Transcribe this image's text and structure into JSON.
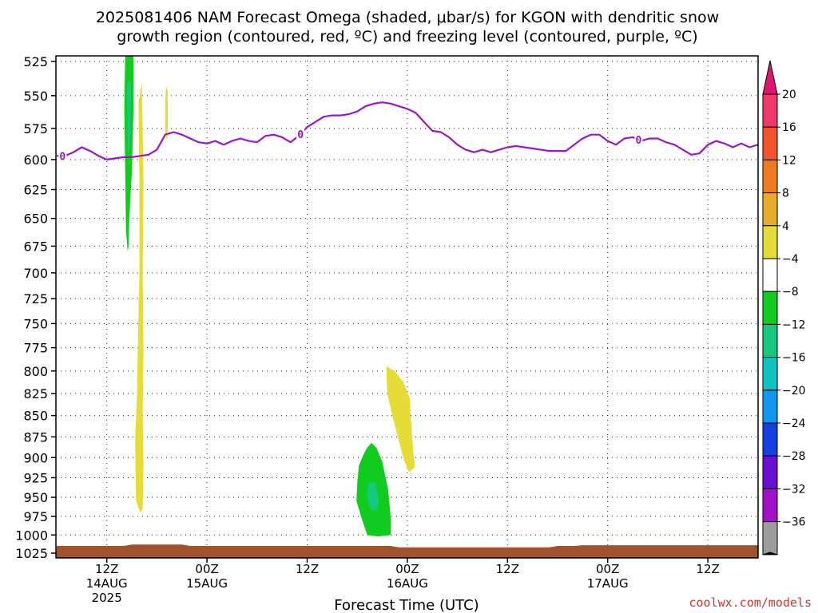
{
  "title": {
    "line1": "2025081406 NAM Forecast Omega (shaded, μbar/s) for KGON with dendritic snow",
    "line2": "growth region (contoured, red, ºC) and freezing level (contoured, purple, ºC)"
  },
  "credit": "coolwx.com/models",
  "chart_data": {
    "type": "contour",
    "title": "2025081406 NAM Forecast Omega (shaded, μbar/s) for KGON with dendritic snow growth region (contoured, red, ºC) and freezing level (contoured, purple, ºC)",
    "xlabel": "Forecast Time (UTC)",
    "ylabel": "",
    "x_range_hours": [
      0,
      84
    ],
    "y_scale": "pressure (hPa), increasing downward",
    "ylim": [
      520,
      1030
    ],
    "y_ticks": [
      525,
      550,
      575,
      600,
      625,
      650,
      675,
      700,
      725,
      750,
      775,
      800,
      825,
      850,
      875,
      900,
      925,
      950,
      975,
      1000,
      1025
    ],
    "x_ticks": [
      {
        "hour": 6,
        "line1": "12Z",
        "line2": "14AUG",
        "line3": "2025"
      },
      {
        "hour": 18,
        "line1": "00Z",
        "line2": "15AUG",
        "line3": ""
      },
      {
        "hour": 30,
        "line1": "12Z",
        "line2": "",
        "line3": ""
      },
      {
        "hour": 42,
        "line1": "00Z",
        "line2": "16AUG",
        "line3": ""
      },
      {
        "hour": 54,
        "line1": "12Z",
        "line2": "",
        "line3": ""
      },
      {
        "hour": 66,
        "line1": "00Z",
        "line2": "17AUG",
        "line3": ""
      },
      {
        "hour": 78,
        "line1": "12Z",
        "line2": "",
        "line3": ""
      }
    ],
    "grid": true,
    "legend": "colorbar-right",
    "colorbar": {
      "labels": [
        "20",
        "16",
        "12",
        "8",
        "4",
        "−4",
        "−8",
        "−12",
        "−16",
        "−20",
        "−24",
        "−28",
        "−32",
        "−36"
      ],
      "colors": [
        "#f0386a",
        "#f2542e",
        "#ee7a21",
        "#e8ac2a",
        "#e6dc37",
        "#ffffff",
        "#11cc1e",
        "#15c880",
        "#12c2c2",
        "#1296f0",
        "#1640e0",
        "#6a10d4",
        "#a010c8",
        "#9c9c9c"
      ],
      "top_arrow_color": "#e0146e",
      "bottom_arrow_color": "#000000"
    },
    "freezing_level": {
      "label": "0",
      "color": "#9a16c8",
      "points": [
        [
          0,
          597
        ],
        [
          1,
          597
        ],
        [
          2,
          594
        ],
        [
          3,
          590
        ],
        [
          4,
          593
        ],
        [
          5,
          597
        ],
        [
          6,
          600
        ],
        [
          7,
          599
        ],
        [
          8,
          598
        ],
        [
          9,
          598
        ],
        [
          10,
          597
        ],
        [
          11,
          596
        ],
        [
          12,
          592
        ],
        [
          13,
          580
        ],
        [
          14,
          578
        ],
        [
          15,
          580
        ],
        [
          16,
          583
        ],
        [
          17,
          586
        ],
        [
          18,
          587
        ],
        [
          19,
          585
        ],
        [
          20,
          588
        ],
        [
          21,
          585
        ],
        [
          22,
          583
        ],
        [
          23,
          585
        ],
        [
          24,
          586
        ],
        [
          25,
          581
        ],
        [
          26,
          580
        ],
        [
          27,
          582
        ],
        [
          28,
          586
        ],
        [
          29,
          581
        ],
        [
          30,
          574
        ],
        [
          31,
          570
        ],
        [
          32,
          566
        ],
        [
          33,
          565
        ],
        [
          34,
          565
        ],
        [
          35,
          564
        ],
        [
          36,
          562
        ],
        [
          37,
          558
        ],
        [
          38,
          556
        ],
        [
          39,
          555
        ],
        [
          40,
          556
        ],
        [
          41,
          558
        ],
        [
          42,
          560
        ],
        [
          43,
          563
        ],
        [
          44,
          570
        ],
        [
          45,
          577
        ],
        [
          46,
          578
        ],
        [
          47,
          582
        ],
        [
          48,
          588
        ],
        [
          49,
          592
        ],
        [
          50,
          594
        ],
        [
          51,
          592
        ],
        [
          52,
          594
        ],
        [
          53,
          592
        ],
        [
          54,
          590
        ],
        [
          55,
          589
        ],
        [
          56,
          590
        ],
        [
          57,
          591
        ],
        [
          58,
          592
        ],
        [
          59,
          593
        ],
        [
          60,
          593
        ],
        [
          61,
          593
        ],
        [
          62,
          588
        ],
        [
          63,
          583
        ],
        [
          64,
          580
        ],
        [
          65,
          580
        ],
        [
          66,
          585
        ],
        [
          67,
          588
        ],
        [
          68,
          583
        ],
        [
          69,
          582
        ],
        [
          70,
          585
        ],
        [
          71,
          583
        ],
        [
          72,
          583
        ],
        [
          73,
          586
        ],
        [
          74,
          588
        ],
        [
          75,
          592
        ],
        [
          76,
          596
        ],
        [
          77,
          595
        ],
        [
          78,
          588
        ],
        [
          79,
          585
        ],
        [
          80,
          587
        ],
        [
          81,
          590
        ],
        [
          82,
          587
        ],
        [
          83,
          590
        ],
        [
          84,
          588
        ]
      ],
      "label_hours": [
        0.7,
        29.2,
        69.7
      ]
    },
    "omega_regions": [
      {
        "value_range": [
          -8,
          -4
        ],
        "color": "#11cc1e",
        "points": [
          [
            8.2,
            520
          ],
          [
            9.2,
            520
          ],
          [
            9.2,
            560
          ],
          [
            9.0,
            610
          ],
          [
            8.7,
            650
          ],
          [
            8.6,
            675
          ],
          [
            8.5,
            680
          ],
          [
            8.3,
            660
          ],
          [
            8.2,
            610
          ],
          [
            8.1,
            560
          ]
        ]
      },
      {
        "value_range": [
          -12,
          -8
        ],
        "color": "#15c880",
        "points": [
          [
            8.4,
            540
          ],
          [
            8.9,
            540
          ],
          [
            8.8,
            580
          ],
          [
            8.6,
            600
          ],
          [
            8.5,
            580
          ]
        ]
      },
      {
        "value_range": [
          4,
          8
        ],
        "color": "#e6dc37",
        "points": [
          [
            9.8,
            555
          ],
          [
            10.2,
            540
          ],
          [
            10.4,
            620
          ],
          [
            10.3,
            700
          ],
          [
            10.4,
            780
          ],
          [
            10.3,
            850
          ],
          [
            10.4,
            910
          ],
          [
            10.3,
            965
          ],
          [
            10.0,
            970
          ],
          [
            9.5,
            955
          ],
          [
            9.4,
            880
          ],
          [
            9.6,
            830
          ],
          [
            9.7,
            780
          ],
          [
            9.9,
            700
          ],
          [
            9.9,
            620
          ]
        ]
      },
      {
        "value_range": [
          4,
          8
        ],
        "color": "#e6dc37",
        "points": [
          [
            13.1,
            543
          ],
          [
            13.3,
            547
          ],
          [
            13.3,
            575
          ],
          [
            13.2,
            585
          ],
          [
            13.0,
            578
          ],
          [
            13.0,
            555
          ]
        ]
      },
      {
        "value_range": [
          4,
          8
        ],
        "color": "#e6dc37",
        "points": [
          [
            39.5,
            795
          ],
          [
            40.5,
            800
          ],
          [
            41.5,
            812
          ],
          [
            42.3,
            830
          ],
          [
            42.4,
            850
          ],
          [
            42.7,
            890
          ],
          [
            42.9,
            912
          ],
          [
            42.2,
            918
          ],
          [
            41.6,
            903
          ],
          [
            41.0,
            880
          ],
          [
            40.2,
            850
          ],
          [
            39.6,
            825
          ],
          [
            39.5,
            805
          ]
        ]
      },
      {
        "value_range": [
          -8,
          -4
        ],
        "color": "#11cc1e",
        "points": [
          [
            37.7,
            882
          ],
          [
            38.3,
            888
          ],
          [
            39.0,
            905
          ],
          [
            39.7,
            940
          ],
          [
            40.0,
            975
          ],
          [
            40.0,
            1000
          ],
          [
            38.5,
            1002
          ],
          [
            37.2,
            1000
          ],
          [
            36.6,
            980
          ],
          [
            35.9,
            955
          ],
          [
            36.0,
            932
          ],
          [
            36.2,
            910
          ],
          [
            36.8,
            895
          ],
          [
            37.2,
            888
          ]
        ]
      },
      {
        "value_range": [
          -12,
          -8
        ],
        "color": "#15c880",
        "points": [
          [
            37.5,
            930
          ],
          [
            38.2,
            932
          ],
          [
            38.6,
            955
          ],
          [
            38.3,
            967
          ],
          [
            37.6,
            965
          ],
          [
            37.2,
            950
          ],
          [
            37.3,
            938
          ]
        ]
      }
    ],
    "terrain": {
      "color": "#a0522d",
      "surface_pressure_approx": 1015
    }
  }
}
